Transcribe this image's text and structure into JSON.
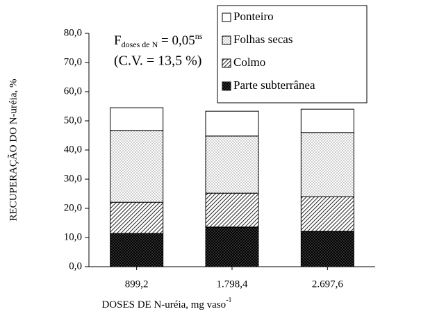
{
  "chart_data": {
    "type": "stacked-bar",
    "xlabel": {
      "text": "DOSES DE N-uréia, mg vaso",
      "sup": "-1"
    },
    "ylabel": "RECUPERAÇÃO DO N-uréia, %",
    "annotation": {
      "f": "F",
      "sub": "doses de N",
      "eq": " = 0,05",
      "sup": "ns",
      "cv": "(C.V. = 13,5 %)"
    },
    "categories": [
      "899,2",
      "1.798,4",
      "2.697,6"
    ],
    "series": [
      {
        "name": "Parte subterrânea",
        "color": "#000000",
        "pattern": "dense-dots",
        "values": [
          11.4,
          13.6,
          12.1
        ]
      },
      {
        "name": "Colmo",
        "color": "#333333",
        "pattern": "hatch",
        "values": [
          10.7,
          11.6,
          11.9
        ]
      },
      {
        "name": "Folhas secas",
        "color": "#bbbbbb",
        "pattern": "dots",
        "values": [
          24.6,
          19.6,
          22.0
        ]
      },
      {
        "name": "Ponteiro",
        "color": "#ffffff",
        "pattern": "none",
        "values": [
          7.8,
          8.5,
          8.0
        ]
      }
    ],
    "ylim": [
      0,
      80
    ],
    "yticks": [
      {
        "value": 0,
        "label": "0,0"
      },
      {
        "value": 10,
        "label": "10,0"
      },
      {
        "value": 20,
        "label": "20,0"
      },
      {
        "value": 30,
        "label": "30,0"
      },
      {
        "value": 40,
        "label": "40,0"
      },
      {
        "value": 50,
        "label": "50,0"
      },
      {
        "value": 60,
        "label": "60,0"
      },
      {
        "value": 70,
        "label": "70,0"
      },
      {
        "value": 80,
        "label": "80,0"
      }
    ],
    "legend": "top-right"
  }
}
